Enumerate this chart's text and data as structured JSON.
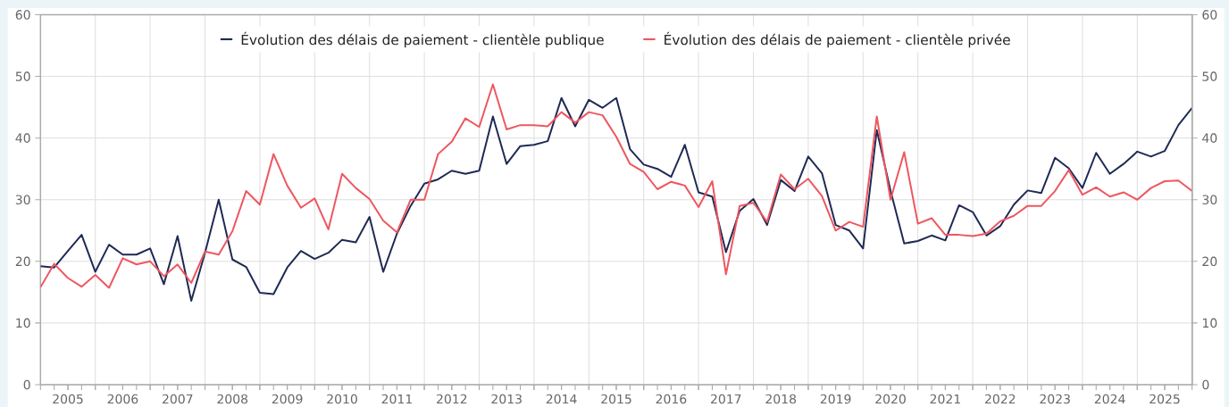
{
  "chart_data": {
    "type": "line",
    "x": [
      "2005-01",
      "2005-04",
      "2005-07",
      "2005-10",
      "2006-01",
      "2006-04",
      "2006-07",
      "2006-10",
      "2007-01",
      "2007-04",
      "2007-07",
      "2007-10",
      "2008-01",
      "2008-04",
      "2008-07",
      "2008-10",
      "2009-01",
      "2009-04",
      "2009-07",
      "2009-10",
      "2010-01",
      "2010-04",
      "2010-07",
      "2010-10",
      "2011-01",
      "2011-04",
      "2011-07",
      "2011-10",
      "2012-01",
      "2012-04",
      "2012-07",
      "2012-10",
      "2013-01",
      "2013-04",
      "2013-07",
      "2013-10",
      "2014-01",
      "2014-04",
      "2014-07",
      "2014-10",
      "2015-01",
      "2015-04",
      "2015-07",
      "2015-10",
      "2016-01",
      "2016-04",
      "2016-07",
      "2016-10",
      "2017-01",
      "2017-04",
      "2017-07",
      "2017-10",
      "2018-01",
      "2018-04",
      "2018-07",
      "2018-10",
      "2019-01",
      "2019-04",
      "2019-07",
      "2019-10",
      "2020-01",
      "2020-04",
      "2020-07",
      "2020-10",
      "2021-01",
      "2021-04",
      "2021-07",
      "2021-10",
      "2022-01",
      "2022-04",
      "2022-07",
      "2022-10",
      "2023-01",
      "2023-04",
      "2023-07",
      "2023-10",
      "2024-01",
      "2024-04",
      "2024-07",
      "2024-10",
      "2025-01",
      "2025-04",
      "2025-07",
      "2025-10",
      "2026-01"
    ],
    "series": [
      {
        "name": "Évolution des délais de paiement - clientèle publique",
        "color": "#1f2a55",
        "values": [
          19.2,
          19.0,
          21.7,
          24.3,
          18.3,
          22.7,
          21.1,
          21.1,
          22.1,
          16.3,
          24.1,
          13.6,
          21.4,
          30.0,
          20.3,
          19.1,
          14.9,
          14.7,
          19.0,
          21.7,
          20.4,
          21.4,
          23.5,
          23.1,
          27.2,
          18.3,
          24.5,
          29.0,
          32.6,
          33.3,
          34.7,
          34.2,
          34.7,
          43.5,
          35.8,
          38.7,
          38.9,
          39.5,
          46.5,
          41.9,
          46.2,
          44.9,
          46.5,
          38.2,
          35.7,
          35.0,
          33.7,
          38.9,
          31.2,
          30.5,
          21.5,
          28.2,
          30.1,
          25.9,
          33.2,
          31.4,
          37.0,
          34.3,
          25.9,
          25.0,
          22.1,
          41.3,
          31.5,
          22.9,
          23.3,
          24.2,
          23.4,
          29.1,
          28.0,
          24.2,
          25.7,
          29.2,
          31.5,
          31.1,
          36.8,
          35.1,
          31.9,
          37.6,
          34.2,
          35.8,
          37.8,
          37.0,
          37.9,
          42.1,
          44.9
        ]
      },
      {
        "name": "Évolution des délais de paiement - clientèle privée",
        "color": "#ee5760",
        "values": [
          15.8,
          19.6,
          17.3,
          15.9,
          17.8,
          15.7,
          20.5,
          19.5,
          20.0,
          17.6,
          19.5,
          16.5,
          21.6,
          21.1,
          24.9,
          31.4,
          29.2,
          37.4,
          32.3,
          28.7,
          30.2,
          25.2,
          34.2,
          31.9,
          30.1,
          26.6,
          24.7,
          30.0,
          30.0,
          37.4,
          39.4,
          43.2,
          41.8,
          48.7,
          41.4,
          42.1,
          42.1,
          41.9,
          44.2,
          42.5,
          44.2,
          43.7,
          40.2,
          35.8,
          34.5,
          31.7,
          32.9,
          32.3,
          28.8,
          33.0,
          17.9,
          29.0,
          29.5,
          26.4,
          34.1,
          31.7,
          33.4,
          30.6,
          25.0,
          26.4,
          25.6,
          43.5,
          30.0,
          37.7,
          26.1,
          27.0,
          24.3,
          24.3,
          24.1,
          24.5,
          26.5,
          27.4,
          29.0,
          29.0,
          31.4,
          34.8,
          30.8,
          32.0,
          30.5,
          31.2,
          30.0,
          31.9,
          33.0,
          33.1,
          31.4
        ]
      }
    ],
    "xlim": [
      "2005-01",
      "2026-01"
    ],
    "xticks": [
      {
        "value": "2005-07",
        "label": "2005"
      },
      {
        "value": "2006-01",
        "label": null
      },
      {
        "value": "2006-07",
        "label": "2006"
      },
      {
        "value": "2007-01",
        "label": null
      },
      {
        "value": "2007-07",
        "label": "2007"
      },
      {
        "value": "2008-01",
        "label": null
      },
      {
        "value": "2008-07",
        "label": "2008"
      },
      {
        "value": "2009-01",
        "label": null
      },
      {
        "value": "2009-07",
        "label": "2009"
      },
      {
        "value": "2010-01",
        "label": null
      },
      {
        "value": "2010-07",
        "label": "2010"
      },
      {
        "value": "2011-01",
        "label": null
      },
      {
        "value": "2011-07",
        "label": "2011"
      },
      {
        "value": "2012-01",
        "label": null
      },
      {
        "value": "2012-07",
        "label": "2012"
      },
      {
        "value": "2013-01",
        "label": null
      },
      {
        "value": "2013-07",
        "label": "2013"
      },
      {
        "value": "2014-01",
        "label": null
      },
      {
        "value": "2014-07",
        "label": "2014"
      },
      {
        "value": "2015-01",
        "label": null
      },
      {
        "value": "2015-07",
        "label": "2015"
      },
      {
        "value": "2016-01",
        "label": null
      },
      {
        "value": "2016-07",
        "label": "2016"
      },
      {
        "value": "2017-01",
        "label": null
      },
      {
        "value": "2017-07",
        "label": "2017"
      },
      {
        "value": "2018-01",
        "label": null
      },
      {
        "value": "2018-07",
        "label": "2018"
      },
      {
        "value": "2019-01",
        "label": null
      },
      {
        "value": "2019-07",
        "label": "2019"
      },
      {
        "value": "2020-01",
        "label": null
      },
      {
        "value": "2020-07",
        "label": "2020"
      },
      {
        "value": "2021-01",
        "label": null
      },
      {
        "value": "2021-07",
        "label": "2021"
      },
      {
        "value": "2022-01",
        "label": null
      },
      {
        "value": "2022-07",
        "label": "2022"
      },
      {
        "value": "2023-01",
        "label": null
      },
      {
        "value": "2023-07",
        "label": "2023"
      },
      {
        "value": "2024-01",
        "label": null
      },
      {
        "value": "2024-07",
        "label": "2024"
      },
      {
        "value": "2025-01",
        "label": null
      },
      {
        "value": "2025-07",
        "label": "2025"
      }
    ],
    "ylim": [
      0,
      60
    ],
    "yticks": [
      0,
      10,
      20,
      30,
      40,
      50,
      60
    ],
    "y2lim": [
      0,
      60
    ],
    "y2ticks": [
      0,
      10,
      20,
      30,
      40,
      50,
      60
    ],
    "grid": true,
    "legend": "top"
  }
}
